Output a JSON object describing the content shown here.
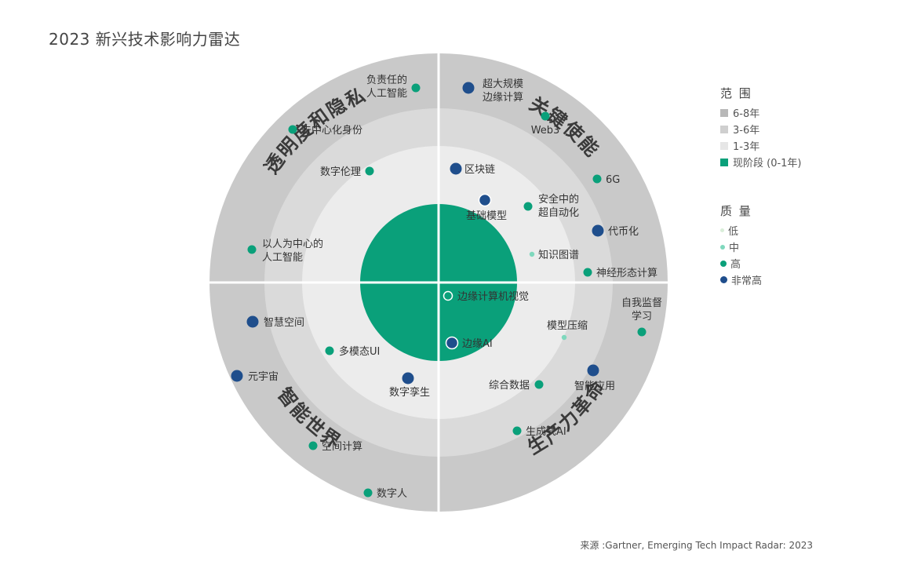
{
  "title": "2023 新兴技术影响力雷达",
  "source": "来源 :Gartner, Emerging Tech Impact Radar: 2023",
  "colors": {
    "ring_outer": "#c9c9c9",
    "ring_mid": "#dadada",
    "ring_inner": "#ececec",
    "core": "#0aa07a",
    "dot_high": "#0aa07a",
    "dot_mid": "#7fd8bd",
    "dot_low": "#d9eed9",
    "dot_very_high": "#1f4e8c"
  },
  "quadrants": [
    {
      "key": "tl",
      "label": "透明度和隐私"
    },
    {
      "key": "tr",
      "label": "关键使能"
    },
    {
      "key": "bl",
      "label": "智能世界"
    },
    {
      "key": "br",
      "label": "生产力革命"
    }
  ],
  "legend": {
    "range_title": "范 围",
    "ranges": [
      {
        "label": "6-8年",
        "color": "#b8b8b8"
      },
      {
        "label": "3-6年",
        "color": "#cfcfcf"
      },
      {
        "label": "1-3年",
        "color": "#e6e6e6"
      },
      {
        "label": "现阶段 (0-1年)",
        "color": "#0aa07a"
      }
    ],
    "quality_title": "质 量",
    "qualities": [
      {
        "label": "低",
        "level": "low"
      },
      {
        "label": "中",
        "level": "mid"
      },
      {
        "label": "高",
        "level": "high"
      },
      {
        "label": "非常高",
        "level": "very_high"
      }
    ]
  },
  "technologies": [
    {
      "name": "负责任的",
      "name2": "人工智能",
      "quadrant": "tl",
      "range": "6-8年",
      "quality": "high"
    },
    {
      "name": "去中心化身份",
      "quadrant": "tl",
      "range": "3-6年",
      "quality": "high"
    },
    {
      "name": "数字伦理",
      "quadrant": "tl",
      "range": "1-3年",
      "quality": "high"
    },
    {
      "name": "以人为中心的",
      "name2": "人工智能",
      "quadrant": "tl",
      "range": "3-6年",
      "quality": "high"
    },
    {
      "name": "超大规模",
      "name2": "边缘计算",
      "quadrant": "tr",
      "range": "6-8年",
      "quality": "very_high"
    },
    {
      "name": "Web3",
      "quadrant": "tr",
      "range": "3-6年",
      "quality": "high"
    },
    {
      "name": "区块链",
      "quadrant": "tr",
      "range": "1-3年",
      "quality": "very_high"
    },
    {
      "name": "6G",
      "quadrant": "tr",
      "range": "6-8年",
      "quality": "high"
    },
    {
      "name": "基础模型",
      "quadrant": "tr",
      "range": "现阶段 (0-1年)",
      "quality": "very_high"
    },
    {
      "name": "安全中的",
      "name2": "超自动化",
      "quadrant": "tr",
      "range": "1-3年",
      "quality": "high"
    },
    {
      "name": "代币化",
      "quadrant": "tr",
      "range": "3-6年",
      "quality": "very_high"
    },
    {
      "name": "知识图谱",
      "quadrant": "tr",
      "range": "1-3年",
      "quality": "mid"
    },
    {
      "name": "神经形态计算",
      "quadrant": "tr",
      "range": "3-6年",
      "quality": "high"
    },
    {
      "name": "边缘计算机视觉",
      "quadrant": "br",
      "range": "现阶段 (0-1年)",
      "quality": "high"
    },
    {
      "name": "自我监督",
      "name2": "学习",
      "quadrant": "br",
      "range": "6-8年",
      "quality": "high"
    },
    {
      "name": "模型压缩",
      "quadrant": "br",
      "range": "1-3年",
      "quality": "mid"
    },
    {
      "name": "边缘AI",
      "quadrant": "br",
      "range": "现阶段 (0-1年)",
      "quality": "very_high"
    },
    {
      "name": "智能应用",
      "quadrant": "br",
      "range": "3-6年",
      "quality": "very_high"
    },
    {
      "name": "综合数据",
      "quadrant": "br",
      "range": "1-3年",
      "quality": "high"
    },
    {
      "name": "生成式AI",
      "quadrant": "br",
      "range": "3-6年",
      "quality": "high"
    },
    {
      "name": "智慧空间",
      "quadrant": "bl",
      "range": "3-6年",
      "quality": "very_high"
    },
    {
      "name": "多模态UI",
      "quadrant": "bl",
      "range": "1-3年",
      "quality": "high"
    },
    {
      "name": "元宇宙",
      "quadrant": "bl",
      "range": "6-8年",
      "quality": "very_high"
    },
    {
      "name": "数字孪生",
      "quadrant": "bl",
      "range": "1-3年",
      "quality": "very_high"
    },
    {
      "name": "空间计算",
      "quadrant": "bl",
      "range": "3-6年",
      "quality": "high"
    },
    {
      "name": "数字人",
      "quadrant": "bl",
      "range": "6-8年",
      "quality": "high"
    }
  ]
}
